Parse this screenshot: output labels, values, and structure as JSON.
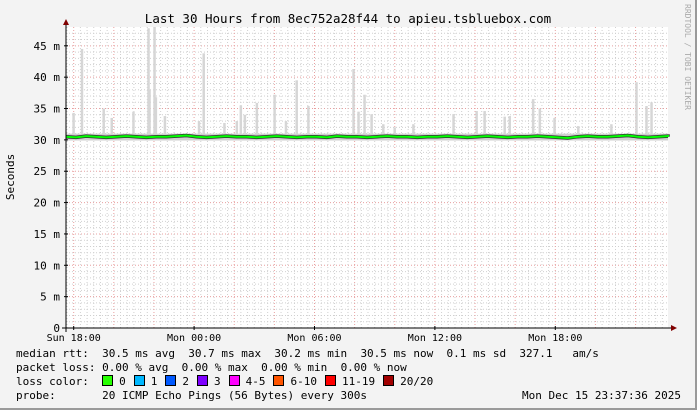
{
  "chart_data": {
    "type": "area",
    "title": "Last 30 Hours from 8ec752a28f44 to apieu.tsbluebox.com",
    "ylabel": "Seconds",
    "xlabel": "",
    "ylim": [
      0,
      48
    ],
    "y_ticks": [
      0,
      5,
      10,
      15,
      20,
      25,
      30,
      35,
      40,
      45
    ],
    "y_tick_labels": [
      "0",
      "5 m",
      "10 m",
      "15 m",
      "20 m",
      "25 m",
      "30 m",
      "35 m",
      "40 m",
      "45 m"
    ],
    "xlim": [
      "2025-12-14T17:37",
      "2025-12-15T23:37"
    ],
    "x_ticks": [
      "2025-12-14T18:00",
      "2025-12-15T00:00",
      "2025-12-15T06:00",
      "2025-12-15T12:00",
      "2025-12-15T18:00"
    ],
    "x_tick_labels": [
      "Sun 18:00",
      "Mon 00:00",
      "Mon 06:00",
      "Mon 12:00",
      "Mon 18:00"
    ],
    "grid": true,
    "watermark": "RRDTOOL / TOBI OETIKER",
    "colors": {
      "median": "#00ff00",
      "smoke": "#d6d6d6",
      "major_grid": "#e8a0a0",
      "minor_grid": "#d0d0d0"
    },
    "median_series": {
      "interval_minutes": 30,
      "values": [
        30.5,
        30.4,
        30.6,
        30.5,
        30.4,
        30.5,
        30.6,
        30.5,
        30.4,
        30.5,
        30.5,
        30.6,
        30.7,
        30.5,
        30.4,
        30.5,
        30.6,
        30.5,
        30.5,
        30.4,
        30.5,
        30.6,
        30.5,
        30.4,
        30.5,
        30.5,
        30.4,
        30.6,
        30.5,
        30.5,
        30.4,
        30.5,
        30.6,
        30.5,
        30.5,
        30.4,
        30.5,
        30.5,
        30.6,
        30.5,
        30.4,
        30.5,
        30.6,
        30.5,
        30.4,
        30.5,
        30.5,
        30.6,
        30.5,
        30.4,
        30.3,
        30.5,
        30.6,
        30.5,
        30.5,
        30.6,
        30.7,
        30.5,
        30.4,
        30.5,
        30.6,
        30.5,
        30.5
      ]
    },
    "smoke_spikes": [
      {
        "t": "2025-12-14T17:59",
        "max": 34.3
      },
      {
        "t": "2025-12-14T18:24",
        "max": 44.5
      },
      {
        "t": "2025-12-14T19:29",
        "max": 35.0
      },
      {
        "t": "2025-12-14T19:53",
        "max": 33.5
      },
      {
        "t": "2025-12-14T20:58",
        "max": 34.5
      },
      {
        "t": "2025-12-14T21:43",
        "max": 47.8
      },
      {
        "t": "2025-12-14T21:46",
        "max": 38.0
      },
      {
        "t": "2025-12-14T22:01",
        "max": 48.0
      },
      {
        "t": "2025-12-14T22:05",
        "max": 36.8
      },
      {
        "t": "2025-12-14T22:32",
        "max": 33.8
      },
      {
        "t": "2025-12-15T00:14",
        "max": 33.0
      },
      {
        "t": "2025-12-15T00:28",
        "max": 43.8
      },
      {
        "t": "2025-12-15T01:30",
        "max": 32.7
      },
      {
        "t": "2025-12-15T02:07",
        "max": 33.0
      },
      {
        "t": "2025-12-15T02:19",
        "max": 35.5
      },
      {
        "t": "2025-12-15T02:31",
        "max": 34.0
      },
      {
        "t": "2025-12-15T03:07",
        "max": 35.9
      },
      {
        "t": "2025-12-15T04:00",
        "max": 37.2
      },
      {
        "t": "2025-12-15T04:34",
        "max": 33.0
      },
      {
        "t": "2025-12-15T05:06",
        "max": 39.5
      },
      {
        "t": "2025-12-15T05:41",
        "max": 35.4
      },
      {
        "t": "2025-12-15T07:56",
        "max": 41.3
      },
      {
        "t": "2025-12-15T08:11",
        "max": 34.5
      },
      {
        "t": "2025-12-15T08:29",
        "max": 37.2
      },
      {
        "t": "2025-12-15T08:50",
        "max": 34.1
      },
      {
        "t": "2025-12-15T09:25",
        "max": 32.5
      },
      {
        "t": "2025-12-15T09:59",
        "max": 32.0
      },
      {
        "t": "2025-12-15T10:55",
        "max": 32.5
      },
      {
        "t": "2025-12-15T12:55",
        "max": 34.1
      },
      {
        "t": "2025-12-15T14:04",
        "max": 34.6
      },
      {
        "t": "2025-12-15T14:28",
        "max": 34.6
      },
      {
        "t": "2025-12-15T15:28",
        "max": 33.7
      },
      {
        "t": "2025-12-15T15:43",
        "max": 33.8
      },
      {
        "t": "2025-12-15T16:53",
        "max": 36.5
      },
      {
        "t": "2025-12-15T17:13",
        "max": 35.0
      },
      {
        "t": "2025-12-15T17:57",
        "max": 33.5
      },
      {
        "t": "2025-12-15T19:08",
        "max": 32.2
      },
      {
        "t": "2025-12-15T20:47",
        "max": 32.5
      },
      {
        "t": "2025-12-15T22:02",
        "max": 39.2
      },
      {
        "t": "2025-12-15T22:32",
        "max": 35.4
      },
      {
        "t": "2025-12-15T22:47",
        "max": 36.0
      }
    ],
    "smoke_band": [
      29.9,
      31.0
    ]
  },
  "legend": {
    "median_rtt": {
      "label": "median rtt:",
      "avg": "30.5 ms avg",
      "max": "30.7 ms max",
      "min": "30.2 ms min",
      "now": "30.5 ms now",
      "sd": "0.1 ms sd",
      "am": "327.1",
      "am_unit": "am/s"
    },
    "packet_loss": {
      "label": "packet loss:",
      "avg": "0.00 % avg",
      "max": "0.00 % max",
      "min": "0.00 % min",
      "now": "0.00 % now"
    },
    "loss_color": {
      "label": "loss color:",
      "items": [
        {
          "label": "0",
          "color": "#26ff00"
        },
        {
          "label": "1",
          "color": "#00b8ff"
        },
        {
          "label": "2",
          "color": "#0059ff"
        },
        {
          "label": "3",
          "color": "#7e00ff"
        },
        {
          "label": "4-5",
          "color": "#ff00ff"
        },
        {
          "label": "6-10",
          "color": "#ff5500"
        },
        {
          "label": "11-19",
          "color": "#ff0000"
        },
        {
          "label": "20/20",
          "color": "#a10000"
        }
      ]
    },
    "probe": {
      "label": "probe:",
      "text": "20 ICMP Echo Pings (56 Bytes) every 300s",
      "timestamp": "Mon Dec 15 23:37:36 2025"
    }
  }
}
